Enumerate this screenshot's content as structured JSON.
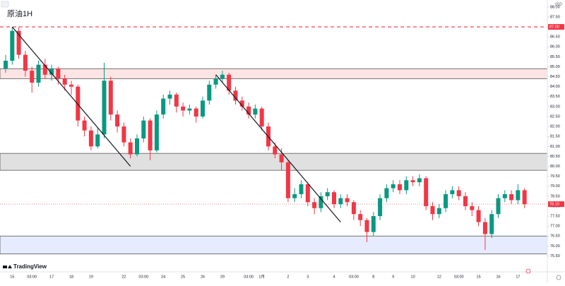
{
  "chart_data": {
    "type": "candlestick",
    "title": "原油1H",
    "currency": "USD",
    "brand": "TradingView",
    "categories": [
      null,
      "15",
      null,
      null,
      "03:00",
      null,
      null,
      "17",
      null,
      null,
      "18",
      null,
      null,
      "19",
      null,
      null,
      null,
      null,
      "22",
      null,
      null,
      "03:00",
      null,
      null,
      "24",
      null,
      null,
      "25",
      null,
      null,
      "26",
      null,
      null,
      "29",
      null,
      null,
      null,
      "03:00",
      null,
      "1月",
      null,
      null,
      null,
      "2",
      null,
      null,
      "3",
      null,
      null,
      null,
      "4",
      null,
      null,
      "03:00",
      null,
      null,
      "8",
      null,
      null,
      "9",
      null,
      null,
      "10",
      null,
      null,
      null,
      "12",
      null,
      null,
      "03:00",
      null,
      null,
      "15",
      null,
      null,
      "16",
      null,
      null,
      "17",
      null
    ],
    "open": [
      84.9,
      85.3,
      86.8,
      85.6,
      84.8,
      84.2,
      85.1,
      84.6,
      84.9,
      84.4,
      84.1,
      84.0,
      82.3,
      81.8,
      81.0,
      81.6,
      84.3,
      82.6,
      82.0,
      81.2,
      80.6,
      81.4,
      82.3,
      80.8,
      82.6,
      83.4,
      83.6,
      83.0,
      82.8,
      82.9,
      82.5,
      83.3,
      84.1,
      84.4,
      84.6,
      83.8,
      83.3,
      83.0,
      82.6,
      82.9,
      82.0,
      81.0,
      80.6,
      80.2,
      78.4,
      78.6,
      79.1,
      78.2,
      77.9,
      78.5,
      78.7,
      78.1,
      78.4,
      78.2,
      77.6,
      77.3,
      76.7,
      77.5,
      78.4,
      78.9,
      79.1,
      78.8,
      79.3,
      79.2,
      79.4,
      78.0,
      77.6,
      77.9,
      78.6,
      78.8,
      78.5,
      78.0,
      77.8,
      77.2,
      76.6,
      77.6,
      78.4,
      78.6,
      78.3,
      78.8
    ],
    "high": [
      85.6,
      87.0,
      87.0,
      85.8,
      85.0,
      85.3,
      85.4,
      85.1,
      85.0,
      84.6,
      84.3,
      84.1,
      82.5,
      82.0,
      81.9,
      85.2,
      84.5,
      82.8,
      82.2,
      81.4,
      81.6,
      82.5,
      82.4,
      82.8,
      83.6,
      83.8,
      83.7,
      83.2,
      83.1,
      83.0,
      83.5,
      84.3,
      84.6,
      84.8,
      84.7,
      84.0,
      83.5,
      83.2,
      83.1,
      83.0,
      82.2,
      81.2,
      80.9,
      80.3,
      78.9,
      79.3,
      79.2,
      78.4,
      78.7,
      78.9,
      78.8,
      78.6,
      78.6,
      78.3,
      77.8,
      77.4,
      77.7,
      78.6,
      79.1,
      79.3,
      79.3,
      79.5,
      79.5,
      79.6,
      79.5,
      78.2,
      78.1,
      78.8,
      79.0,
      79.0,
      78.7,
      78.2,
      78.0,
      77.4,
      77.8,
      78.6,
      78.8,
      78.8,
      79.1,
      78.9
    ],
    "low": [
      84.7,
      85.1,
      85.4,
      84.5,
      83.7,
      84.0,
      84.4,
      84.3,
      84.1,
      83.8,
      83.6,
      82.0,
      81.5,
      80.8,
      80.9,
      81.4,
      82.3,
      81.7,
      81.0,
      80.4,
      80.5,
      81.2,
      80.3,
      80.7,
      82.4,
      83.1,
      82.7,
      82.5,
      82.6,
      82.2,
      82.4,
      83.1,
      83.9,
      84.2,
      83.6,
      83.1,
      82.8,
      82.4,
      82.4,
      81.8,
      80.8,
      80.4,
      79.8,
      78.2,
      78.2,
      78.4,
      78.0,
      77.6,
      77.7,
      78.3,
      77.9,
      77.9,
      78.0,
      77.3,
      77.0,
      76.2,
      76.5,
      77.3,
      78.2,
      78.7,
      78.6,
      78.6,
      79.0,
      79.0,
      77.8,
      77.3,
      77.4,
      77.7,
      78.4,
      78.3,
      77.8,
      77.5,
      77.0,
      75.8,
      76.4,
      77.4,
      78.2,
      78.1,
      78.1,
      77.9
    ],
    "close": [
      85.3,
      86.8,
      85.6,
      84.8,
      84.2,
      85.1,
      84.6,
      84.9,
      84.4,
      84.1,
      84.0,
      82.3,
      81.8,
      81.0,
      81.6,
      84.3,
      82.6,
      82.0,
      81.2,
      80.6,
      81.4,
      82.3,
      80.8,
      82.6,
      83.4,
      83.6,
      83.0,
      82.8,
      82.9,
      82.5,
      83.3,
      84.1,
      84.4,
      84.6,
      83.8,
      83.3,
      83.0,
      82.6,
      82.9,
      82.0,
      81.0,
      80.6,
      80.2,
      78.4,
      78.6,
      79.1,
      78.2,
      77.9,
      78.5,
      78.7,
      78.1,
      78.4,
      78.2,
      77.6,
      77.3,
      76.7,
      77.5,
      78.4,
      78.9,
      79.1,
      78.8,
      79.3,
      79.2,
      79.4,
      78.0,
      77.6,
      77.9,
      78.6,
      78.8,
      78.5,
      78.0,
      77.8,
      77.2,
      76.6,
      77.6,
      78.4,
      78.6,
      78.3,
      78.8,
      78.1
    ],
    "up_color": "#089981",
    "down_color": "#f23645",
    "ylim": [
      74.7,
      88.35
    ],
    "yticks": [
      {
        "value": 75.5,
        "label": "75.50"
      },
      {
        "value": 76,
        "label": "76.00"
      },
      {
        "value": 76.5,
        "label": "76.50"
      },
      {
        "value": 77,
        "label": "77.00"
      },
      {
        "value": 77.5,
        "label": "77.50"
      },
      {
        "value": 78,
        "label": "78.00"
      },
      {
        "value": 78.5,
        "label": "78.50"
      },
      {
        "value": 79,
        "label": "79.00"
      },
      {
        "value": 79.5,
        "label": "79.50"
      },
      {
        "value": 80,
        "label": "80.00"
      },
      {
        "value": 80.5,
        "label": "80.50"
      },
      {
        "value": 81,
        "label": "81.00"
      },
      {
        "value": 81.5,
        "label": "81.50"
      },
      {
        "value": 82,
        "label": "82.00"
      },
      {
        "value": 82.5,
        "label": "82.50"
      },
      {
        "value": 83,
        "label": "83.00"
      },
      {
        "value": 83.5,
        "label": "83.50"
      },
      {
        "value": 84,
        "label": "84.00"
      },
      {
        "value": 84.5,
        "label": "84.50"
      },
      {
        "value": 85,
        "label": "85.00"
      },
      {
        "value": 85.5,
        "label": "85.50"
      },
      {
        "value": 86,
        "label": "86.00"
      },
      {
        "value": 86.5,
        "label": "86.50"
      },
      {
        "value": 87.5,
        "label": "87.50"
      },
      {
        "value": 88,
        "label": "88.00"
      }
    ],
    "zones": [
      {
        "low": 84.4,
        "high": 84.9,
        "color": "#fde4e4"
      },
      {
        "low": 79.8,
        "high": 80.65,
        "color": "#e0e0e0"
      },
      {
        "low": 75.6,
        "high": 76.5,
        "color": "#e6ebfd"
      }
    ],
    "levels": [
      {
        "value": 87.0,
        "label": "87.00",
        "color": "#f23645"
      }
    ],
    "trendlines": [
      {
        "x": [
          1,
          19
        ],
        "y": [
          87.0,
          80.0
        ]
      },
      {
        "x": [
          32,
          51
        ],
        "y": [
          84.6,
          77.2
        ]
      }
    ],
    "last_price": {
      "value": 78.1,
      "label": "78.10",
      "color": "#f23645"
    }
  }
}
